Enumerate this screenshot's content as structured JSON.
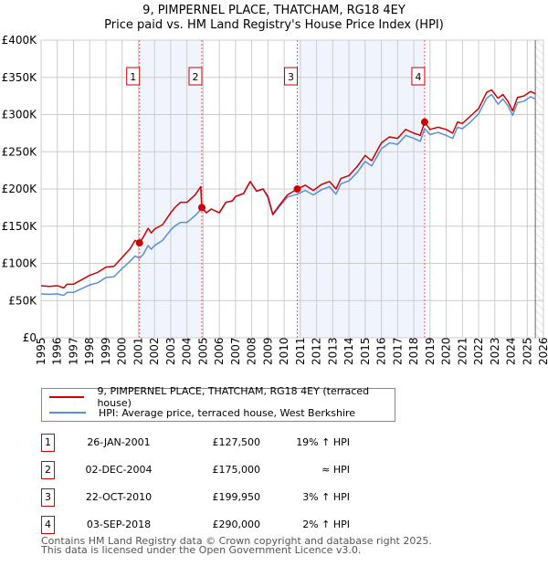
{
  "chart_data": {
    "type": "line",
    "title": "9, PIMPERNEL PLACE, THATCHAM, RG18 4EY",
    "subtitle": "Price paid vs. HM Land Registry's House Price Index (HPI)",
    "xlim": [
      1995,
      2026
    ],
    "ylim": [
      0,
      400000
    ],
    "grid": true,
    "x_ticks": [
      1995,
      1996,
      1997,
      1998,
      1999,
      2000,
      2001,
      2002,
      2003,
      2004,
      2005,
      2006,
      2007,
      2008,
      2009,
      2010,
      2011,
      2012,
      2013,
      2014,
      2015,
      2016,
      2017,
      2018,
      2019,
      2020,
      2021,
      2022,
      2023,
      2024,
      2025,
      2026
    ],
    "y_ticks": [
      {
        "v": 0,
        "label": "£0"
      },
      {
        "v": 50000,
        "label": "£50K"
      },
      {
        "v": 100000,
        "label": "£100K"
      },
      {
        "v": 150000,
        "label": "£150K"
      },
      {
        "v": 200000,
        "label": "£200K"
      },
      {
        "v": 250000,
        "label": "£250K"
      },
      {
        "v": 300000,
        "label": "£300K"
      },
      {
        "v": 350000,
        "label": "£350K"
      },
      {
        "v": 400000,
        "label": "£400K"
      }
    ],
    "series": [
      {
        "name": "9, PIMPERNEL PLACE, THATCHAM, RG18 4EY (terraced house)",
        "color": "#cc0000",
        "x": [
          1995,
          1995.5,
          1996,
          1996.4,
          1996.6,
          1997,
          1997.5,
          1998,
          1998.5,
          1999,
          1999.5,
          2000,
          2000.5,
          2000.8,
          2001.07,
          2001.3,
          2001.6,
          2001.8,
          2002,
          2002.5,
          2003,
          2003.3,
          2003.6,
          2004,
          2004.5,
          2004.85,
          2004.92,
          2005.2,
          2005.5,
          2006,
          2006.4,
          2006.8,
          2007,
          2007.5,
          2007.9,
          2008.3,
          2008.7,
          2009,
          2009.3,
          2009.7,
          2010.2,
          2010.81,
          2011.3,
          2011.8,
          2012.3,
          2012.8,
          2013.2,
          2013.5,
          2014,
          2014.5,
          2015,
          2015.4,
          2016,
          2016.5,
          2017,
          2017.5,
          2018,
          2018.4,
          2018.67,
          2019,
          2019.5,
          2020,
          2020.4,
          2020.7,
          2021,
          2021.5,
          2022,
          2022.5,
          2022.8,
          2023.2,
          2023.5,
          2023.8,
          2024.1,
          2024.4,
          2024.8,
          2025.2,
          2025.5
        ],
        "y": [
          70000,
          69000,
          70000,
          67000,
          72000,
          72000,
          78000,
          84000,
          88000,
          95000,
          96000,
          108000,
          120000,
          131000,
          127500,
          135000,
          147000,
          141000,
          146000,
          152000,
          168000,
          176000,
          182000,
          182000,
          192000,
          203000,
          175000,
          168000,
          173000,
          168000,
          182000,
          184000,
          190000,
          194000,
          210000,
          197000,
          200000,
          190000,
          166000,
          178000,
          192000,
          199950,
          205000,
          198000,
          206000,
          210000,
          200000,
          214000,
          218000,
          230000,
          245000,
          238000,
          262000,
          270000,
          268000,
          280000,
          275000,
          272000,
          290000,
          280000,
          283000,
          280000,
          275000,
          290000,
          288000,
          298000,
          308000,
          330000,
          333000,
          322000,
          327000,
          318000,
          305000,
          323000,
          325000,
          331000,
          328000
        ]
      },
      {
        "name": "HPI: Average price, terraced house, West Berkshire",
        "color": "#5b8fd0",
        "x": [
          1995,
          1995.5,
          1996,
          1996.4,
          1996.6,
          1997,
          1997.5,
          1998,
          1998.5,
          1999,
          1999.5,
          2000,
          2000.5,
          2000.8,
          2001.07,
          2001.3,
          2001.6,
          2001.8,
          2002,
          2002.5,
          2003,
          2003.3,
          2003.6,
          2004,
          2004.5,
          2004.92,
          2005.2,
          2005.5,
          2006,
          2006.4,
          2006.8,
          2007,
          2007.5,
          2007.9,
          2008.3,
          2008.7,
          2009,
          2009.3,
          2009.7,
          2010.2,
          2010.81,
          2011.3,
          2011.8,
          2012.3,
          2012.8,
          2013.2,
          2013.5,
          2014,
          2014.5,
          2015,
          2015.4,
          2016,
          2016.5,
          2017,
          2017.5,
          2018,
          2018.4,
          2018.67,
          2019,
          2019.5,
          2020,
          2020.4,
          2020.7,
          2021,
          2021.5,
          2022,
          2022.5,
          2022.8,
          2023.2,
          2023.5,
          2023.8,
          2024.1,
          2024.4,
          2024.8,
          2025.2,
          2025.5
        ],
        "y": [
          59000,
          58500,
          59000,
          57000,
          61000,
          61000,
          66000,
          71000,
          74000,
          81000,
          82000,
          93000,
          103000,
          110000,
          107000,
          112000,
          124000,
          119000,
          124000,
          131000,
          145000,
          151000,
          155000,
          155000,
          164000,
          174000,
          168000,
          173000,
          168000,
          182000,
          184000,
          190000,
          194000,
          210000,
          197000,
          200000,
          188000,
          165000,
          176000,
          189000,
          193000,
          198000,
          192000,
          199000,
          203000,
          193000,
          207000,
          211000,
          222000,
          237000,
          231000,
          254000,
          262000,
          260000,
          272000,
          268000,
          264000,
          281000,
          273000,
          276000,
          272000,
          268000,
          283000,
          281000,
          290000,
          301000,
          322000,
          327000,
          314000,
          321000,
          312000,
          299000,
          316000,
          318000,
          324000,
          321000
        ]
      }
    ],
    "sales": [
      {
        "id": "1",
        "x": 2001.07,
        "y": 127500
      },
      {
        "id": "2",
        "x": 2004.92,
        "y": 175000
      },
      {
        "id": "3",
        "x": 2010.81,
        "y": 199950
      },
      {
        "id": "4",
        "x": 2018.67,
        "y": 290000
      }
    ],
    "shaded_ranges": [
      [
        2001.07,
        2004.92
      ],
      [
        2010.81,
        2018.67
      ]
    ],
    "forecast_from": 2025.5
  },
  "legend": {
    "property": "9, PIMPERNEL PLACE, THATCHAM, RG18 4EY (terraced house)",
    "hpi": "HPI: Average price, terraced house, West Berkshire"
  },
  "transactions": [
    {
      "id": "1",
      "date": "26-JAN-2001",
      "price": "£127,500",
      "hpi": "19% ↑ HPI"
    },
    {
      "id": "2",
      "date": "02-DEC-2004",
      "price": "£175,000",
      "hpi": "≈ HPI"
    },
    {
      "id": "3",
      "date": "22-OCT-2010",
      "price": "£199,950",
      "hpi": "3% ↑ HPI"
    },
    {
      "id": "4",
      "date": "03-SEP-2018",
      "price": "£290,000",
      "hpi": "2% ↑ HPI"
    }
  ],
  "footer": {
    "line1": "Contains HM Land Registry data © Crown copyright and database right 2025.",
    "line2": "This data is licensed under the Open Government Licence v3.0."
  }
}
